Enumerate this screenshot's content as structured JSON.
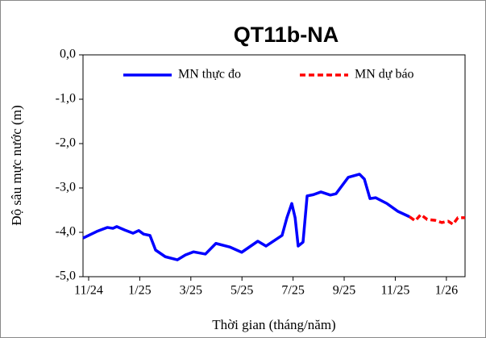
{
  "chart_data": {
    "type": "line",
    "title": "QT11b-NA",
    "ylabel": "Độ sâu mực nước (m)",
    "xlabel": "Thời gian (tháng/năm)",
    "xlim": [
      -0.22,
      14.73
    ],
    "ylim": [
      -5,
      0
    ],
    "xticks": [
      {
        "value": 0,
        "label": "11/24"
      },
      {
        "value": 2,
        "label": "1/25"
      },
      {
        "value": 4,
        "label": "3/25"
      },
      {
        "value": 6,
        "label": "5/25"
      },
      {
        "value": 8,
        "label": "7/25"
      },
      {
        "value": 10,
        "label": "9/25"
      },
      {
        "value": 12,
        "label": "11/25"
      },
      {
        "value": 14,
        "label": "1/26"
      }
    ],
    "yticks": [
      {
        "value": 0,
        "label": "0,0"
      },
      {
        "value": -1,
        "label": "-1,0"
      },
      {
        "value": -2,
        "label": "-2,0"
      },
      {
        "value": -3,
        "label": "-3,0"
      },
      {
        "value": -4,
        "label": "-4,0"
      },
      {
        "value": -5,
        "label": "-5,0"
      }
    ],
    "series": [
      {
        "name": "MN thực đo",
        "color": "#0000ff",
        "dashed": false,
        "x": [
          -0.22,
          0.32,
          0.73,
          0.95,
          1.1,
          1.42,
          1.74,
          1.96,
          2.15,
          2.4,
          2.62,
          3.0,
          3.47,
          3.79,
          4.1,
          4.57,
          4.98,
          5.52,
          5.99,
          6.62,
          6.94,
          7.57,
          7.76,
          7.95,
          8.08,
          8.2,
          8.39,
          8.55,
          8.8,
          9.09,
          9.46,
          9.68,
          10.16,
          10.6,
          10.79,
          11.01,
          11.23,
          11.67,
          12.11,
          12.56
        ],
        "values": [
          -4.13,
          -3.98,
          -3.89,
          -3.91,
          -3.87,
          -3.95,
          -4.02,
          -3.96,
          -4.04,
          -4.07,
          -4.4,
          -4.55,
          -4.62,
          -4.51,
          -4.44,
          -4.49,
          -4.25,
          -4.33,
          -4.45,
          -4.2,
          -4.31,
          -4.07,
          -3.67,
          -3.35,
          -3.67,
          -4.31,
          -4.22,
          -3.18,
          -3.15,
          -3.09,
          -3.16,
          -3.13,
          -2.76,
          -2.69,
          -2.8,
          -3.24,
          -3.22,
          -3.35,
          -3.53,
          -3.65
        ]
      },
      {
        "name": "MN dự báo",
        "color": "#ff0000",
        "dashed": true,
        "x": [
          12.56,
          12.78,
          13.0,
          13.25,
          13.56,
          13.82,
          14.07,
          14.26,
          14.45,
          14.73
        ],
        "values": [
          -3.65,
          -3.74,
          -3.6,
          -3.71,
          -3.73,
          -3.78,
          -3.75,
          -3.82,
          -3.67,
          -3.67
        ]
      }
    ]
  }
}
